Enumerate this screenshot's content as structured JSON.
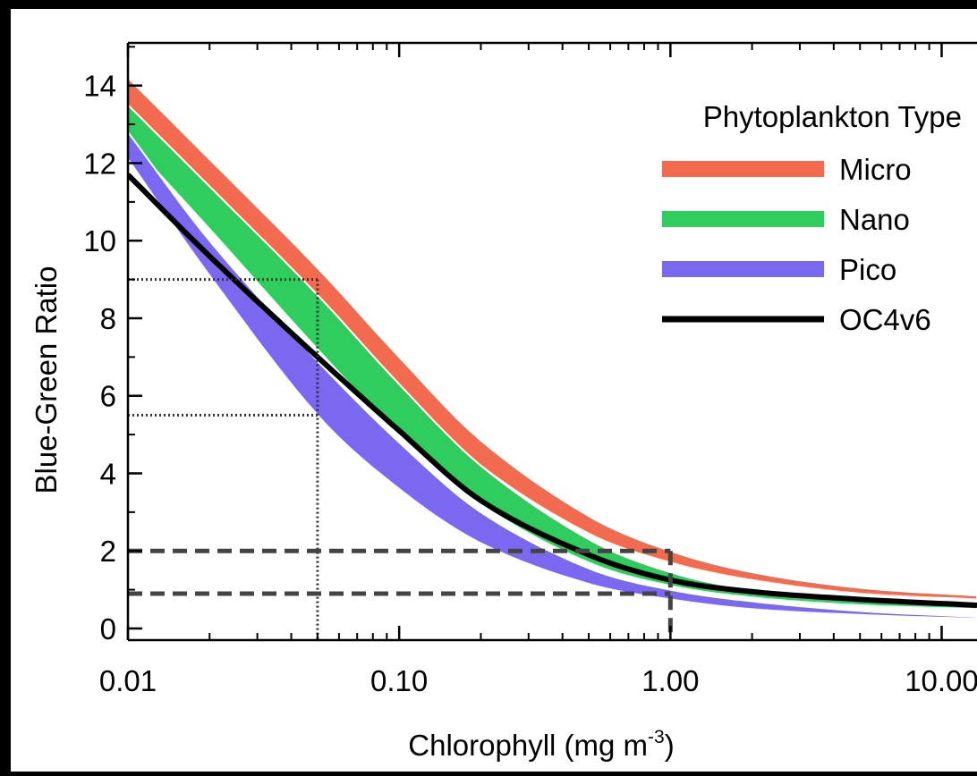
{
  "chart_data": {
    "type": "line",
    "title": "",
    "xlabel": "Chlorophyll (mg m",
    "xlabel_sup": "-3",
    "xlabel_close": ")",
    "ylabel": "Blue-Green Ratio",
    "x_scale": "log",
    "xlim": [
      0.01,
      13.5
    ],
    "ylim": [
      -0.3,
      15.1
    ],
    "x_ticks": [
      {
        "value": 0.01,
        "label": "0.01"
      },
      {
        "value": 0.1,
        "label": "0.10"
      },
      {
        "value": 1,
        "label": "1.00"
      },
      {
        "value": 10,
        "label": "10.00"
      }
    ],
    "y_ticks": [
      {
        "value": 0,
        "label": "0"
      },
      {
        "value": 2,
        "label": "2"
      },
      {
        "value": 4,
        "label": "4"
      },
      {
        "value": 6,
        "label": "6"
      },
      {
        "value": 8,
        "label": "8"
      },
      {
        "value": 10,
        "label": "10"
      },
      {
        "value": 12,
        "label": "12"
      },
      {
        "value": 14,
        "label": "14"
      }
    ],
    "grid": false,
    "legend": {
      "title": "Phytoplankton Type",
      "position": "top-right"
    },
    "bands": [
      {
        "name": "Micro",
        "color": "#f26b4f",
        "x": [
          0.01,
          0.02,
          0.05,
          0.1,
          0.2,
          0.5,
          1,
          2,
          5,
          13.5
        ],
        "upper": [
          14.2,
          12.1,
          9.3,
          7.0,
          4.85,
          2.9,
          2.0,
          1.45,
          1.05,
          0.85
        ],
        "lower": [
          13.3,
          11.2,
          8.4,
          6.2,
          4.2,
          2.45,
          1.7,
          1.25,
          0.9,
          0.75
        ]
      },
      {
        "name": "Nano",
        "color": "#2fcc5e",
        "x": [
          0.01,
          0.02,
          0.05,
          0.1,
          0.2,
          0.5,
          1,
          2,
          5,
          13.5
        ],
        "upper": [
          13.5,
          11.4,
          8.6,
          6.3,
          4.2,
          2.3,
          1.45,
          1.0,
          0.75,
          0.6
        ],
        "lower": [
          12.6,
          10.3,
          7.2,
          5.0,
          3.2,
          1.7,
          1.1,
          0.8,
          0.6,
          0.5
        ]
      },
      {
        "name": "Pico",
        "color": "#7a69f0",
        "x": [
          0.01,
          0.02,
          0.05,
          0.1,
          0.2,
          0.5,
          1,
          2,
          5,
          13.5
        ],
        "upper": [
          12.8,
          10.0,
          6.9,
          4.8,
          3.0,
          1.55,
          1.0,
          0.7,
          0.45,
          0.3
        ],
        "lower": [
          12.1,
          9.1,
          5.5,
          3.6,
          2.2,
          1.15,
          0.75,
          0.5,
          0.35,
          0.25
        ]
      }
    ],
    "series": [
      {
        "name": "OC4v6",
        "color": "#000000",
        "x": [
          0.01,
          0.02,
          0.05,
          0.1,
          0.2,
          0.5,
          1,
          2,
          5,
          13.5
        ],
        "values": [
          11.7,
          9.6,
          7.0,
          5.1,
          3.3,
          1.9,
          1.25,
          0.95,
          0.75,
          0.6
        ]
      }
    ],
    "reference_lines": {
      "dotted_vertical_x": 0.05,
      "dotted_horizontal_y": [
        9.0,
        5.5
      ],
      "dashed_vertical_x": 1.0,
      "dashed_horizontal_y": [
        2.0,
        0.9
      ]
    }
  }
}
